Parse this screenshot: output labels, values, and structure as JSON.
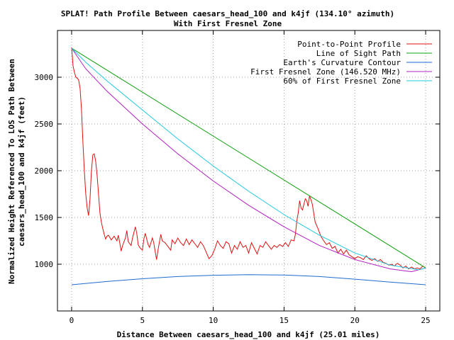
{
  "chart_data": {
    "type": "line",
    "title": "SPLAT! Path Profile Between caesars_head_100 and k4jf (134.10° azimuth)",
    "subtitle": "With First Fresnel Zone",
    "xlabel": "Distance Between caesars_head_100 and k4jf (25.01 miles)",
    "ylabel_line1": "Normalized Height Referenced To LOS Path Between",
    "ylabel_line2": "caesars_head_100 and k4jf (feet)",
    "xlim": [
      -1,
      26
    ],
    "ylim": [
      500,
      3500
    ],
    "xticks": [
      0,
      5,
      10,
      15,
      20,
      25
    ],
    "yticks": [
      1000,
      1500,
      2000,
      2500,
      3000
    ],
    "grid": true,
    "legend_position": "top-right",
    "series": [
      {
        "name": "Point-to-Point Profile",
        "color": "#e01010",
        "points": [
          [
            0,
            3320
          ],
          [
            0.1,
            3120
          ],
          [
            0.2,
            3050
          ],
          [
            0.3,
            3000
          ],
          [
            0.4,
            2990
          ],
          [
            0.5,
            2970
          ],
          [
            0.6,
            2880
          ],
          [
            0.7,
            2650
          ],
          [
            0.8,
            2300
          ],
          [
            0.9,
            2000
          ],
          [
            1.0,
            1750
          ],
          [
            1.1,
            1600
          ],
          [
            1.2,
            1520
          ],
          [
            1.3,
            1700
          ],
          [
            1.4,
            2000
          ],
          [
            1.5,
            2170
          ],
          [
            1.6,
            2180
          ],
          [
            1.7,
            2100
          ],
          [
            1.8,
            1950
          ],
          [
            1.9,
            1750
          ],
          [
            2.0,
            1550
          ],
          [
            2.1,
            1450
          ],
          [
            2.2,
            1380
          ],
          [
            2.3,
            1320
          ],
          [
            2.4,
            1270
          ],
          [
            2.5,
            1300
          ],
          [
            2.6,
            1310
          ],
          [
            2.8,
            1260
          ],
          [
            3.0,
            1300
          ],
          [
            3.2,
            1250
          ],
          [
            3.3,
            1310
          ],
          [
            3.4,
            1230
          ],
          [
            3.5,
            1140
          ],
          [
            3.6,
            1200
          ],
          [
            3.8,
            1280
          ],
          [
            3.9,
            1360
          ],
          [
            4.0,
            1240
          ],
          [
            4.2,
            1200
          ],
          [
            4.3,
            1280
          ],
          [
            4.5,
            1400
          ],
          [
            4.6,
            1330
          ],
          [
            4.7,
            1210
          ],
          [
            4.8,
            1180
          ],
          [
            5.0,
            1150
          ],
          [
            5.1,
            1270
          ],
          [
            5.2,
            1330
          ],
          [
            5.4,
            1210
          ],
          [
            5.5,
            1180
          ],
          [
            5.7,
            1280
          ],
          [
            5.8,
            1230
          ],
          [
            6.0,
            1050
          ],
          [
            6.1,
            1150
          ],
          [
            6.3,
            1320
          ],
          [
            6.4,
            1250
          ],
          [
            6.6,
            1230
          ],
          [
            6.8,
            1190
          ],
          [
            7.0,
            1150
          ],
          [
            7.1,
            1260
          ],
          [
            7.3,
            1220
          ],
          [
            7.5,
            1280
          ],
          [
            7.7,
            1230
          ],
          [
            7.9,
            1200
          ],
          [
            8.1,
            1270
          ],
          [
            8.3,
            1210
          ],
          [
            8.5,
            1260
          ],
          [
            8.7,
            1220
          ],
          [
            8.9,
            1180
          ],
          [
            9.1,
            1240
          ],
          [
            9.3,
            1200
          ],
          [
            9.5,
            1130
          ],
          [
            9.7,
            1060
          ],
          [
            9.9,
            1090
          ],
          [
            10.1,
            1160
          ],
          [
            10.3,
            1250
          ],
          [
            10.5,
            1200
          ],
          [
            10.7,
            1170
          ],
          [
            10.9,
            1240
          ],
          [
            11.1,
            1220
          ],
          [
            11.3,
            1120
          ],
          [
            11.5,
            1200
          ],
          [
            11.7,
            1160
          ],
          [
            11.9,
            1240
          ],
          [
            12.1,
            1180
          ],
          [
            12.3,
            1200
          ],
          [
            12.5,
            1120
          ],
          [
            12.7,
            1230
          ],
          [
            12.9,
            1170
          ],
          [
            13.1,
            1110
          ],
          [
            13.3,
            1200
          ],
          [
            13.5,
            1180
          ],
          [
            13.7,
            1240
          ],
          [
            13.9,
            1200
          ],
          [
            14.1,
            1160
          ],
          [
            14.3,
            1200
          ],
          [
            14.5,
            1180
          ],
          [
            14.7,
            1210
          ],
          [
            14.9,
            1190
          ],
          [
            15.1,
            1230
          ],
          [
            15.3,
            1190
          ],
          [
            15.5,
            1260
          ],
          [
            15.7,
            1250
          ],
          [
            15.8,
            1320
          ],
          [
            15.9,
            1460
          ],
          [
            16.0,
            1550
          ],
          [
            16.1,
            1680
          ],
          [
            16.2,
            1600
          ],
          [
            16.3,
            1580
          ],
          [
            16.4,
            1640
          ],
          [
            16.5,
            1700
          ],
          [
            16.6,
            1680
          ],
          [
            16.7,
            1620
          ],
          [
            16.8,
            1730
          ],
          [
            16.9,
            1690
          ],
          [
            17.0,
            1640
          ],
          [
            17.2,
            1450
          ],
          [
            17.4,
            1380
          ],
          [
            17.6,
            1300
          ],
          [
            17.8,
            1250
          ],
          [
            18.0,
            1210
          ],
          [
            18.2,
            1230
          ],
          [
            18.4,
            1170
          ],
          [
            18.6,
            1190
          ],
          [
            18.8,
            1120
          ],
          [
            19.0,
            1160
          ],
          [
            19.2,
            1110
          ],
          [
            19.4,
            1150
          ],
          [
            19.6,
            1100
          ],
          [
            19.8,
            1080
          ],
          [
            20.0,
            1060
          ],
          [
            20.2,
            1080
          ],
          [
            20.4,
            1070
          ],
          [
            20.6,
            1050
          ],
          [
            20.8,
            1090
          ],
          [
            21.0,
            1060
          ],
          [
            21.2,
            1040
          ],
          [
            21.4,
            1060
          ],
          [
            21.6,
            1030
          ],
          [
            21.8,
            1050
          ],
          [
            22.0,
            1020
          ],
          [
            22.2,
            1010
          ],
          [
            22.4,
            990
          ],
          [
            22.6,
            1000
          ],
          [
            22.8,
            980
          ],
          [
            23.0,
            1010
          ],
          [
            23.2,
            990
          ],
          [
            23.4,
            960
          ],
          [
            23.6,
            980
          ],
          [
            23.8,
            950
          ],
          [
            24.0,
            970
          ],
          [
            24.2,
            950
          ],
          [
            24.4,
            960
          ],
          [
            24.6,
            950
          ],
          [
            24.8,
            980
          ],
          [
            25.01,
            960
          ]
        ]
      },
      {
        "name": "Line of Sight Path",
        "color": "#10a010",
        "points": [
          [
            0,
            3310
          ],
          [
            25.01,
            960
          ]
        ]
      },
      {
        "name": "Earth's Curvature Contour",
        "color": "#1f6bd0",
        "points": [
          [
            0,
            780
          ],
          [
            2.5,
            815
          ],
          [
            5,
            845
          ],
          [
            7.5,
            868
          ],
          [
            10,
            882
          ],
          [
            12.5,
            888
          ],
          [
            15,
            884
          ],
          [
            17.5,
            868
          ],
          [
            20,
            840
          ],
          [
            22.5,
            808
          ],
          [
            25.01,
            780
          ]
        ]
      },
      {
        "name": "First Fresnel Zone (146.520 MHz)",
        "color": "#b020c0",
        "points": [
          [
            0,
            3310
          ],
          [
            1,
            3090
          ],
          [
            2.5,
            2850
          ],
          [
            5,
            2500
          ],
          [
            7.5,
            2180
          ],
          [
            10,
            1890
          ],
          [
            12.5,
            1630
          ],
          [
            15,
            1400
          ],
          [
            17.5,
            1200
          ],
          [
            20,
            1050
          ],
          [
            22.5,
            950
          ],
          [
            24,
            920
          ],
          [
            25.01,
            960
          ]
        ]
      },
      {
        "name": "60% of First Fresnel Zone",
        "color": "#20c8e0",
        "points": [
          [
            0,
            3310
          ],
          [
            1,
            3160
          ],
          [
            2.5,
            2960
          ],
          [
            5,
            2650
          ],
          [
            7.5,
            2340
          ],
          [
            10,
            2050
          ],
          [
            12.5,
            1780
          ],
          [
            15,
            1530
          ],
          [
            17.5,
            1310
          ],
          [
            20,
            1120
          ],
          [
            22.5,
            990
          ],
          [
            24.5,
            940
          ],
          [
            25.01,
            960
          ]
        ]
      }
    ]
  }
}
